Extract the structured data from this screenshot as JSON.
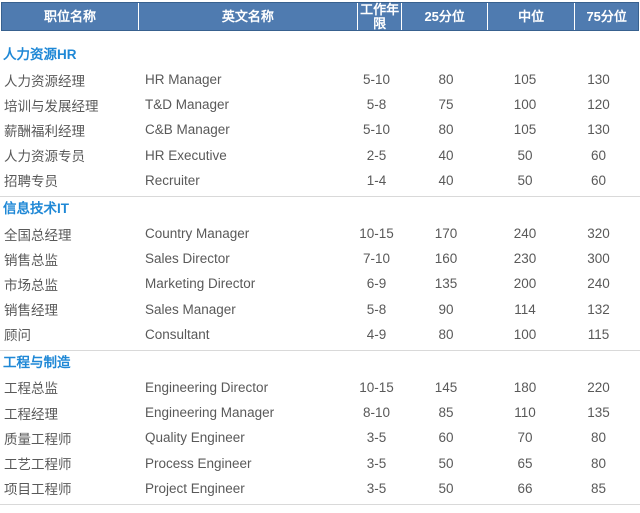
{
  "colors": {
    "header_bg": "#4f7bb0",
    "header_border": "#38618f",
    "header_text": "#ffffff",
    "section_title_blue": "#1f88d6",
    "body_text": "#595959",
    "separator": "#d9d9d9"
  },
  "table": {
    "columns": [
      "职位名称",
      "英文名称",
      "工作年限",
      "25分位",
      "中位",
      "75分位"
    ],
    "sections": [
      {
        "title": "人力资源HR",
        "rows": [
          [
            "人力资源经理",
            "HR Manager",
            "5-10",
            "80",
            "105",
            "130"
          ],
          [
            "培训与发展经理",
            "T&D Manager",
            "5-8",
            "75",
            "100",
            "120"
          ],
          [
            "薪酬福利经理",
            "C&B Manager",
            "5-10",
            "80",
            "105",
            "130"
          ],
          [
            "人力资源专员",
            "HR Executive",
            "2-5",
            "40",
            "50",
            "60"
          ],
          [
            "招聘专员",
            "Recruiter",
            "1-4",
            "40",
            "50",
            "60"
          ]
        ]
      },
      {
        "title": "信息技术IT",
        "rows": [
          [
            "全国总经理",
            "Country Manager",
            "10-15",
            "170",
            "240",
            "320"
          ],
          [
            "销售总监",
            "Sales Director",
            "7-10",
            "160",
            "230",
            "300"
          ],
          [
            "市场总监",
            "Marketing Director",
            "6-9",
            "135",
            "200",
            "240"
          ],
          [
            "销售经理",
            "Sales Manager",
            "5-8",
            "90",
            "114",
            "132"
          ],
          [
            "顾问",
            "Consultant",
            "4-9",
            "80",
            "100",
            "115"
          ]
        ]
      },
      {
        "title": "工程与制造",
        "rows": [
          [
            "工程总监",
            "Engineering Director",
            "10-15",
            "145",
            "180",
            "220"
          ],
          [
            "工程经理",
            "Engineering Manager",
            "8-10",
            "85",
            "110",
            "135"
          ],
          [
            "质量工程师",
            "Quality Engineer",
            "3-5",
            "60",
            "70",
            "80"
          ],
          [
            "工艺工程师",
            "Process Engineer",
            "3-5",
            "50",
            "65",
            "80"
          ],
          [
            "项目工程师",
            "Project Engineer",
            "3-5",
            "50",
            "66",
            "85"
          ]
        ]
      }
    ]
  }
}
